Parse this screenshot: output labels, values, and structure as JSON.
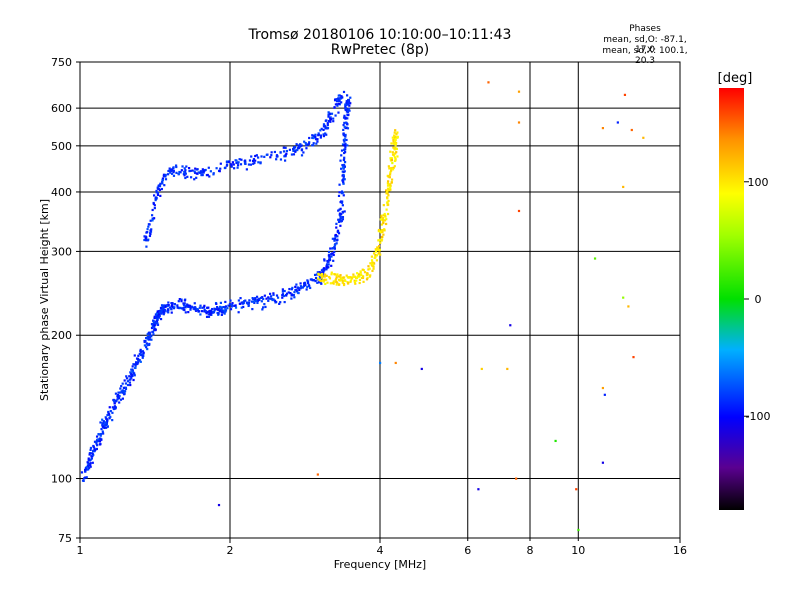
{
  "header": {
    "title_line1": "Tromsø 20180106 10:10:00–10:11:43",
    "title_line2": "RwPretec (8p)",
    "phase_heading": "Phases",
    "phase_o": "mean, sd,O: -87.1, 17.0",
    "phase_x": "mean, sd,X: 100.1, 20.3"
  },
  "colorbar": {
    "unit_label": "[deg]",
    "ticks": [
      {
        "value": 100,
        "label": "100"
      },
      {
        "value": 0,
        "label": "0"
      },
      {
        "value": -100,
        "label": "-100"
      }
    ],
    "range": [
      -180,
      180
    ]
  },
  "chart_data": {
    "type": "scatter",
    "xlabel": "Frequency [MHz]",
    "ylabel": "Stationary phase Virtual Height [km]",
    "xscale": "log",
    "yscale": "log",
    "xlim": [
      1,
      16
    ],
    "ylim": [
      75,
      750
    ],
    "x_ticks": [
      {
        "v": 1,
        "label": "1",
        "major": true
      },
      {
        "v": 2,
        "label": "2",
        "major": true
      },
      {
        "v": 4,
        "label": "4",
        "major": true
      },
      {
        "v": 6,
        "label": "6",
        "major": false
      },
      {
        "v": 8,
        "label": "8",
        "major": false
      },
      {
        "v": 10,
        "label": "10",
        "major": false
      },
      {
        "v": 16,
        "label": "16",
        "major": true
      }
    ],
    "y_ticks": [
      {
        "v": 75,
        "label": "75"
      },
      {
        "v": 100,
        "label": "100"
      },
      {
        "v": 200,
        "label": "200"
      },
      {
        "v": 300,
        "label": "300"
      },
      {
        "v": 400,
        "label": "400"
      },
      {
        "v": 500,
        "label": "500"
      },
      {
        "v": 600,
        "label": "600"
      },
      {
        "v": 750,
        "label": "750"
      }
    ],
    "grid": true,
    "color_scale": "phase in degrees, rainbow from -180 (black) to 180 (red)",
    "traces": [
      {
        "name": "O-mode trace (F-region)",
        "phase_mean": -87.1,
        "phase_sd": 17.0,
        "points": [
          [
            1.02,
            100
          ],
          [
            1.05,
            110
          ],
          [
            1.08,
            120
          ],
          [
            1.12,
            130
          ],
          [
            1.16,
            140
          ],
          [
            1.2,
            150
          ],
          [
            1.25,
            160
          ],
          [
            1.3,
            175
          ],
          [
            1.35,
            190
          ],
          [
            1.4,
            205
          ],
          [
            1.42,
            215
          ],
          [
            1.45,
            225
          ],
          [
            1.5,
            230
          ],
          [
            1.6,
            232
          ],
          [
            1.7,
            228
          ],
          [
            1.8,
            225
          ],
          [
            1.9,
            226
          ],
          [
            2.0,
            230
          ],
          [
            2.2,
            234
          ],
          [
            2.4,
            238
          ],
          [
            2.6,
            244
          ],
          [
            2.8,
            252
          ],
          [
            3.0,
            262
          ],
          [
            3.1,
            275
          ],
          [
            3.2,
            295
          ],
          [
            3.3,
            330
          ],
          [
            3.35,
            380
          ],
          [
            3.38,
            450
          ],
          [
            3.4,
            520
          ],
          [
            3.42,
            580
          ],
          [
            3.45,
            630
          ]
        ]
      },
      {
        "name": "O-mode upper branch",
        "phase_mean": -87.1,
        "phase_sd": 17.0,
        "points": [
          [
            1.35,
            310
          ],
          [
            1.4,
            360
          ],
          [
            1.45,
            420
          ],
          [
            1.55,
            445
          ],
          [
            1.7,
            440
          ],
          [
            1.9,
            450
          ],
          [
            2.1,
            460
          ],
          [
            2.4,
            475
          ],
          [
            2.7,
            490
          ],
          [
            2.9,
            510
          ],
          [
            3.1,
            540
          ],
          [
            3.25,
            600
          ],
          [
            3.35,
            640
          ]
        ]
      },
      {
        "name": "X-mode trace",
        "phase_mean": 100.1,
        "phase_sd": 20.3,
        "points": [
          [
            3.0,
            265
          ],
          [
            3.2,
            262
          ],
          [
            3.4,
            262
          ],
          [
            3.6,
            265
          ],
          [
            3.8,
            275
          ],
          [
            3.95,
            300
          ],
          [
            4.05,
            340
          ],
          [
            4.15,
            400
          ],
          [
            4.22,
            450
          ],
          [
            4.28,
            500
          ],
          [
            4.3,
            530
          ]
        ]
      }
    ],
    "scattered_points": [
      [
        6.6,
        680,
        150
      ],
      [
        7.6,
        650,
        130
      ],
      [
        9.5,
        760,
        100
      ],
      [
        12.4,
        640,
        160
      ],
      [
        11.2,
        545,
        140
      ],
      [
        12.0,
        560,
        -90
      ],
      [
        12.8,
        540,
        150
      ],
      [
        13.5,
        520,
        120
      ],
      [
        7.6,
        560,
        140
      ],
      [
        12.3,
        410,
        120
      ],
      [
        7.6,
        365,
        160
      ],
      [
        10.8,
        290,
        30
      ],
      [
        12.3,
        240,
        50
      ],
      [
        12.6,
        230,
        120
      ],
      [
        7.3,
        210,
        -110
      ],
      [
        12.9,
        180,
        160
      ],
      [
        11.2,
        155,
        130
      ],
      [
        11.3,
        150,
        -90
      ],
      [
        6.4,
        170,
        110
      ],
      [
        7.2,
        170,
        120
      ],
      [
        9.0,
        120,
        10
      ],
      [
        11.2,
        108,
        -110
      ],
      [
        7.5,
        100,
        150
      ],
      [
        9.9,
        95,
        160
      ],
      [
        6.3,
        95,
        -110
      ],
      [
        10.0,
        78,
        20
      ],
      [
        1.9,
        88,
        -110
      ],
      [
        3.0,
        102,
        150
      ],
      [
        4.0,
        175,
        -60
      ],
      [
        4.3,
        175,
        140
      ],
      [
        4.85,
        170,
        -110
      ]
    ]
  }
}
